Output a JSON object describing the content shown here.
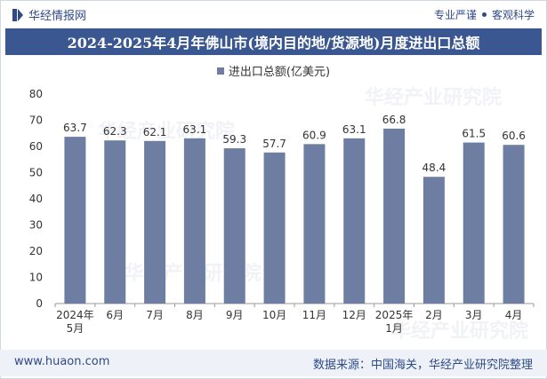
{
  "header": {
    "logo_text": "华经情报网",
    "right_a": "专业严谨",
    "right_b": "客观科学"
  },
  "title": "2024-2025年4月年佛山市(境内目的地/货源地)月度进出口总额",
  "footer": {
    "website": "www.huaon.com",
    "source": "数据来源：中国海关，华经产业研究院整理"
  },
  "watermark": "华经产业研究院",
  "colors": {
    "bar": "#6e7ea3",
    "title_bg": "#3b5792",
    "brand": "#2f4a86"
  },
  "chart_data": {
    "type": "bar",
    "categories": [
      "2024年\n5月",
      "6月",
      "7月",
      "8月",
      "9月",
      "10月",
      "11月",
      "12月",
      "2025年\n1月",
      "2月",
      "3月",
      "4月"
    ],
    "series": [
      {
        "name": "进出口总额(亿美元)",
        "values": [
          63.7,
          62.3,
          62.1,
          63.1,
          59.3,
          57.7,
          60.9,
          63.1,
          66.8,
          48.4,
          61.5,
          60.6
        ]
      }
    ],
    "ylim": [
      0,
      80
    ],
    "yticks": [
      0,
      10,
      20,
      30,
      40,
      50,
      60,
      70,
      80
    ],
    "legend_position": "top-center",
    "grid": false
  }
}
